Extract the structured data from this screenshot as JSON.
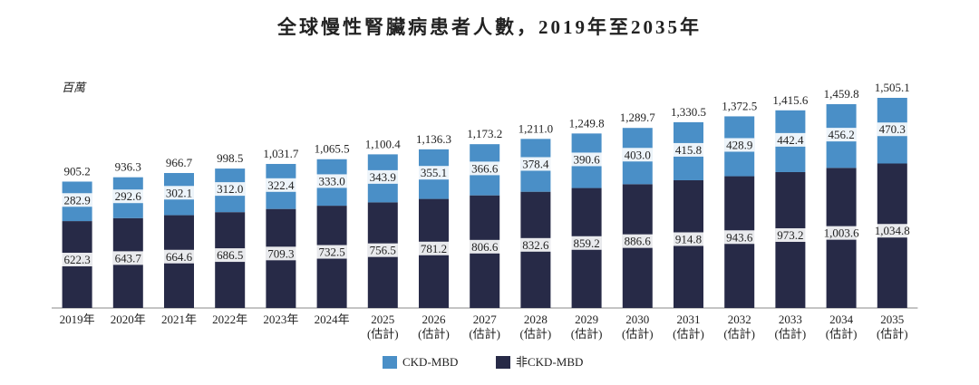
{
  "chart_data": {
    "type": "stacked_bar",
    "title": "全球慢性腎臟病患者人數，2019年至2035年",
    "unit_label": "百萬",
    "categories": [
      "2019年",
      "2020年",
      "2021年",
      "2022年",
      "2023年",
      "2024年",
      "2025\n(估計)",
      "2026\n(估計)",
      "2027\n(估計)",
      "2028\n(估計)",
      "2029\n(估計)",
      "2030\n(估計)",
      "2031\n(估計)",
      "2032\n(估計)",
      "2033\n(估計)",
      "2034\n(估計)",
      "2035\n(估計)"
    ],
    "series": [
      {
        "name": "CKD-MBD",
        "color": "#4a8fc7",
        "values": [
          282.9,
          292.6,
          302.1,
          312.0,
          322.4,
          333.0,
          343.9,
          355.1,
          366.6,
          378.4,
          390.6,
          403.0,
          415.8,
          428.9,
          442.4,
          456.2,
          470.3
        ],
        "value_labels": [
          "282.9",
          "292.6",
          "302.1",
          "312.0",
          "322.4",
          "333.0",
          "343.9",
          "355.1",
          "366.6",
          "378.4",
          "390.6",
          "403.0",
          "415.8",
          "428.9",
          "442.4",
          "456.2",
          "470.3"
        ]
      },
      {
        "name": "非CKD-MBD",
        "color": "#272a47",
        "values": [
          622.3,
          643.7,
          664.6,
          686.5,
          709.3,
          732.5,
          756.5,
          781.2,
          806.6,
          832.6,
          859.2,
          886.6,
          914.8,
          943.6,
          973.2,
          1003.6,
          1034.8
        ],
        "value_labels": [
          "622.3",
          "643.7",
          "664.6",
          "686.5",
          "709.3",
          "732.5",
          "756.5",
          "781.2",
          "806.6",
          "832.6",
          "859.2",
          "886.6",
          "914.8",
          "943.6",
          "973.2",
          "1,003.6",
          "1,034.8"
        ]
      }
    ],
    "totals": [
      905.2,
      936.3,
      966.7,
      998.5,
      1031.7,
      1065.5,
      1100.4,
      1136.3,
      1173.2,
      1211.0,
      1249.8,
      1289.7,
      1330.5,
      1372.5,
      1415.6,
      1459.8,
      1505.1
    ],
    "total_labels": [
      "905.2",
      "936.3",
      "966.7",
      "998.5",
      "1,031.7",
      "1,065.5",
      "1,100.4",
      "1,136.3",
      "1,173.2",
      "1,211.0",
      "1,249.8",
      "1,289.7",
      "1,330.5",
      "1,372.5",
      "1,415.6",
      "1,459.8",
      "1,505.1"
    ]
  }
}
